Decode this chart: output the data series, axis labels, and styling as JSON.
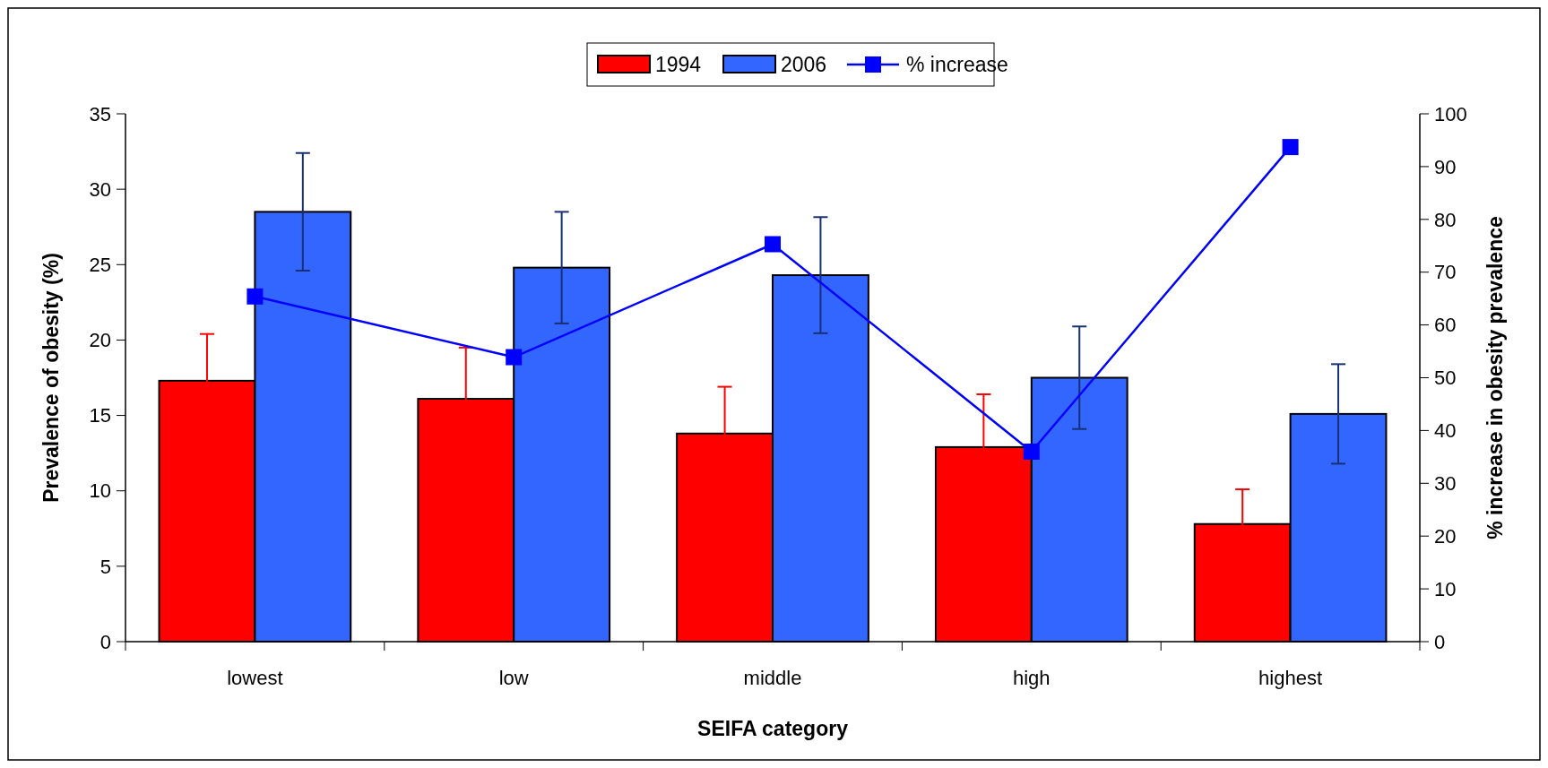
{
  "chart_data": {
    "type": "bar",
    "xlabel": "SEIFA category",
    "ylabel": "Prevalence of obesity (%)",
    "y2label": "% increase in obesity prevalence",
    "categories": [
      "lowest",
      "low",
      "middle",
      "high",
      "highest"
    ],
    "series": [
      {
        "name": "1994",
        "color": "#ff0000",
        "values": [
          17.3,
          16.1,
          13.8,
          12.9,
          7.8
        ],
        "errors": [
          3.1,
          3.4,
          3.1,
          3.5,
          2.3
        ]
      },
      {
        "name": "2006",
        "color": "#3366ff",
        "values": [
          28.5,
          24.8,
          24.3,
          17.5,
          15.1
        ],
        "errors": [
          3.9,
          3.7,
          3.85,
          3.4,
          3.3
        ]
      },
      {
        "name": "% increase",
        "type": "line",
        "axis": "y2",
        "color": "#0000ff",
        "marker": "square",
        "values": [
          65.4,
          53.9,
          75.3,
          36.0,
          93.7
        ]
      }
    ],
    "ylim": [
      0,
      35
    ],
    "yticks": [
      0,
      5,
      10,
      15,
      20,
      25,
      30,
      35
    ],
    "y2lim": [
      0,
      100
    ],
    "y2ticks": [
      0,
      10,
      20,
      30,
      40,
      50,
      60,
      70,
      80,
      90,
      100
    ],
    "legend": "top",
    "grid": false
  }
}
